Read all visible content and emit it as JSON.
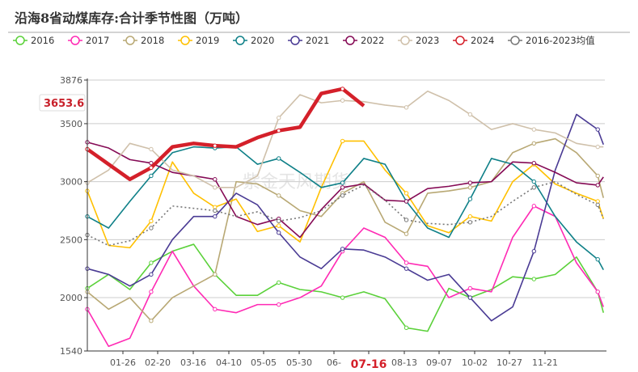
{
  "chart_data": {
    "type": "line",
    "title": "沿海8省动煤库存:合计季节性图（万吨）",
    "watermark": "紫金天风期货",
    "xlabel": "",
    "ylabel": "",
    "ylim": [
      1540,
      3876
    ],
    "y_ticks": [
      1540,
      2000,
      2500,
      3000,
      3500,
      3876
    ],
    "x_tick_labels": [
      "01-26",
      "02-20",
      "03-16",
      "04-10",
      "05-05",
      "05-30",
      "06-",
      "07-16",
      "08-13",
      "09-07",
      "10-02",
      "10-27",
      "11-21"
    ],
    "highlight_x_label": "07-16",
    "highlight_value_label": "3653.6",
    "grid": "horizontal",
    "legend_position": "top",
    "x": [
      "01-01",
      "01-16",
      "01-31",
      "02-15",
      "03-02",
      "03-17",
      "04-01",
      "04-16",
      "05-01",
      "05-16",
      "05-31",
      "06-15",
      "06-30",
      "07-15",
      "07-30",
      "08-14",
      "08-29",
      "09-13",
      "09-28",
      "10-13",
      "10-28",
      "11-12",
      "11-27",
      "12-12",
      "12-27",
      "12-31"
    ],
    "series": [
      {
        "name": "2016",
        "color": "#5bd13a",
        "style": "solid",
        "values": [
          2080,
          2200,
          2070,
          2300,
          2400,
          2460,
          2200,
          2020,
          2020,
          2130,
          2070,
          2050,
          2000,
          2050,
          1990,
          1740,
          1710,
          2080,
          2000,
          2070,
          2180,
          2160,
          2200,
          2350,
          2050,
          1870
        ]
      },
      {
        "name": "2017",
        "color": "#ff2ab4",
        "style": "solid",
        "values": [
          1900,
          1580,
          1650,
          2050,
          2400,
          2100,
          1900,
          1870,
          1940,
          1940,
          2000,
          2100,
          2400,
          2600,
          2520,
          2300,
          2270,
          2000,
          2080,
          2050,
          2520,
          2790,
          2700,
          2300,
          2050,
          1920
        ]
      },
      {
        "name": "2018",
        "color": "#b8a874",
        "style": "solid",
        "values": [
          2050,
          1900,
          2000,
          1800,
          2000,
          2100,
          2200,
          3000,
          2980,
          2880,
          2750,
          2700,
          2900,
          3000,
          2650,
          2550,
          2900,
          2920,
          2950,
          3000,
          3250,
          3330,
          3370,
          3250,
          3050,
          2860
        ]
      },
      {
        "name": "2019",
        "color": "#ffc000",
        "style": "solid",
        "values": [
          2920,
          2450,
          2430,
          2660,
          3170,
          2900,
          2780,
          2850,
          2570,
          2620,
          2480,
          2950,
          3350,
          3350,
          3100,
          2900,
          2620,
          2560,
          2700,
          2660,
          3000,
          3150,
          2980,
          2900,
          2830,
          2680
        ]
      },
      {
        "name": "2020",
        "color": "#0f8088",
        "style": "solid",
        "values": [
          2700,
          2600,
          2830,
          3050,
          3250,
          3300,
          3290,
          3300,
          3150,
          3200,
          3080,
          2950,
          2990,
          3200,
          3150,
          2830,
          2600,
          2520,
          2850,
          3200,
          3150,
          3000,
          2700,
          2480,
          2330,
          2240
        ]
      },
      {
        "name": "2021",
        "color": "#4a3b94",
        "style": "solid",
        "values": [
          2250,
          2200,
          2100,
          2200,
          2500,
          2700,
          2700,
          2900,
          2800,
          2560,
          2350,
          2250,
          2420,
          2410,
          2350,
          2250,
          2150,
          2200,
          2000,
          1800,
          1920,
          2400,
          3100,
          3580,
          3450,
          3320
        ]
      },
      {
        "name": "2022",
        "color": "#850a55",
        "style": "solid",
        "values": [
          3340,
          3290,
          3190,
          3160,
          3080,
          3050,
          3020,
          2700,
          2630,
          2680,
          2520,
          2760,
          2950,
          2980,
          2840,
          2830,
          2940,
          2960,
          2990,
          3000,
          3170,
          3160,
          3080,
          2990,
          2970,
          3040
        ]
      },
      {
        "name": "2023",
        "color": "#cfc0aa",
        "style": "solid",
        "values": [
          2990,
          3100,
          3330,
          3280,
          3100,
          3050,
          2950,
          2950,
          3050,
          3550,
          3750,
          3680,
          3700,
          3690,
          3660,
          3640,
          3780,
          3700,
          3580,
          3450,
          3500,
          3450,
          3420,
          3330,
          3300,
          3300
        ]
      },
      {
        "name": "2024",
        "color": "#d4202a",
        "style": "bold",
        "values": [
          3280,
          3150,
          3020,
          3120,
          3300,
          3330,
          3310,
          3300,
          3380,
          3440,
          3470,
          3760,
          3800,
          3654,
          null,
          null,
          null,
          null,
          null,
          null,
          null,
          null,
          null,
          null,
          null,
          null
        ]
      },
      {
        "name": "2016-2023均值",
        "color": "#777777",
        "style": "dotted",
        "values": [
          2540,
          2450,
          2490,
          2600,
          2790,
          2770,
          2750,
          2700,
          2740,
          2660,
          2690,
          2750,
          2880,
          2970,
          2840,
          2670,
          2640,
          2630,
          2650,
          2700,
          2830,
          2950,
          3000,
          2890,
          2800,
          2680
        ]
      }
    ]
  }
}
